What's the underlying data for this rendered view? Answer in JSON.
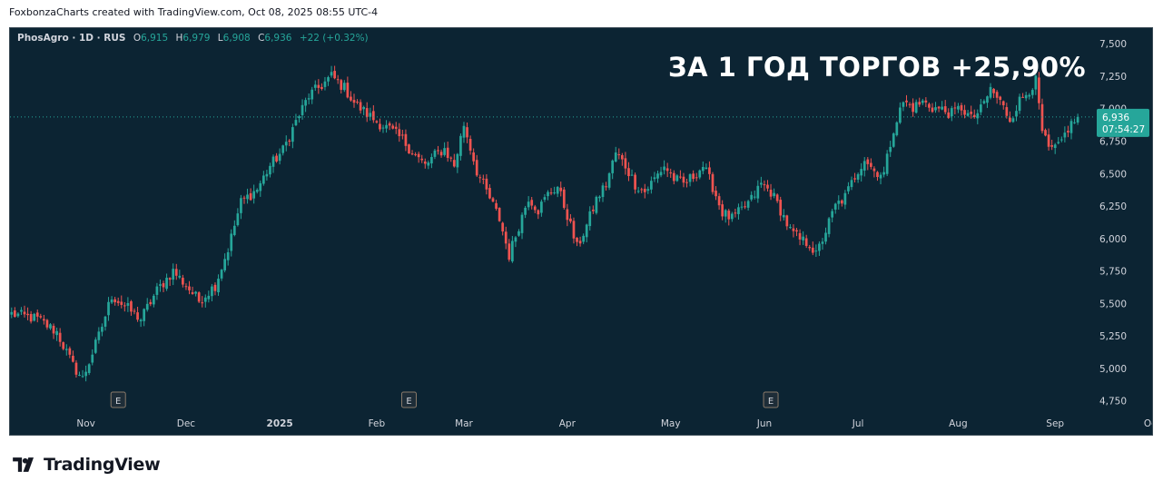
{
  "header": {
    "credit": "FoxbonzaCharts created with TradingView.com, Oct 08, 2025 08:55 UTC-4"
  },
  "legend": {
    "symbol": "PhosAgro · 1D · RUS",
    "o_label": "O",
    "o_value": "6,915",
    "h_label": "H",
    "h_value": "6,979",
    "l_label": "L",
    "l_value": "6,908",
    "c_label": "C",
    "c_value": "6,936",
    "change": "+22 (+0.32%)"
  },
  "annotation": "ЗА 1 ГОД ТОРГОВ +25,90%",
  "price_tag": {
    "price": "6,936",
    "countdown": "07:54:27"
  },
  "footer": {
    "brand": "TradingView"
  },
  "colors": {
    "background": "#0c2433",
    "up": "#26a69a",
    "down": "#ef5350",
    "axis_text": "#d1d4dc"
  },
  "chart_data": {
    "type": "candlestick",
    "symbol": "PhosAgro",
    "interval": "1D",
    "ylim": [
      4650,
      7620
    ],
    "y_ticks": [
      "7,500",
      "7,250",
      "7,000",
      "6,750",
      "6,500",
      "6,250",
      "6,000",
      "5,750",
      "5,500",
      "5,250",
      "5,000",
      "4,750"
    ],
    "y_tick_values": [
      7500,
      7250,
      7000,
      6750,
      6500,
      6250,
      6000,
      5750,
      5500,
      5250,
      5000,
      4750
    ],
    "x_ticks": [
      "Nov",
      "Dec",
      "2025",
      "Feb",
      "Mar",
      "Apr",
      "May",
      "Jun",
      "Jul",
      "Aug",
      "Sep",
      "Oct"
    ],
    "x_tick_index": [
      23,
      54,
      83,
      113,
      140,
      172,
      204,
      233,
      262,
      293,
      323,
      353
    ],
    "earnings_markers": {
      "label": "E",
      "index": [
        33,
        123,
        235
      ]
    },
    "last_price": 6936,
    "anchors": [
      [
        0,
        5420
      ],
      [
        8,
        5380
      ],
      [
        14,
        5280
      ],
      [
        19,
        5020
      ],
      [
        22,
        4920
      ],
      [
        27,
        5250
      ],
      [
        31,
        5560
      ],
      [
        36,
        5460
      ],
      [
        40,
        5380
      ],
      [
        45,
        5600
      ],
      [
        50,
        5750
      ],
      [
        54,
        5640
      ],
      [
        58,
        5520
      ],
      [
        63,
        5640
      ],
      [
        67,
        5920
      ],
      [
        71,
        6280
      ],
      [
        76,
        6380
      ],
      [
        80,
        6560
      ],
      [
        84,
        6680
      ],
      [
        88,
        6900
      ],
      [
        92,
        7100
      ],
      [
        96,
        7180
      ],
      [
        99,
        7250
      ],
      [
        103,
        7160
      ],
      [
        106,
        7050
      ],
      [
        109,
        6980
      ],
      [
        113,
        6900
      ],
      [
        117,
        6840
      ],
      [
        121,
        6760
      ],
      [
        125,
        6640
      ],
      [
        128,
        6560
      ],
      [
        131,
        6640
      ],
      [
        134,
        6690
      ],
      [
        137,
        6560
      ],
      [
        140,
        6880
      ],
      [
        144,
        6520
      ],
      [
        147,
        6360
      ],
      [
        151,
        6150
      ],
      [
        154,
        5870
      ],
      [
        157,
        6100
      ],
      [
        160,
        6320
      ],
      [
        163,
        6220
      ],
      [
        166,
        6340
      ],
      [
        169,
        6400
      ],
      [
        172,
        6180
      ],
      [
        175,
        5930
      ],
      [
        178,
        6100
      ],
      [
        181,
        6300
      ],
      [
        184,
        6420
      ],
      [
        187,
        6660
      ],
      [
        190,
        6560
      ],
      [
        193,
        6420
      ],
      [
        196,
        6360
      ],
      [
        199,
        6460
      ],
      [
        202,
        6560
      ],
      [
        205,
        6460
      ],
      [
        208,
        6420
      ],
      [
        211,
        6480
      ],
      [
        214,
        6560
      ],
      [
        217,
        6400
      ],
      [
        220,
        6200
      ],
      [
        223,
        6150
      ],
      [
        226,
        6220
      ],
      [
        229,
        6300
      ],
      [
        232,
        6420
      ],
      [
        235,
        6360
      ],
      [
        238,
        6220
      ],
      [
        241,
        6060
      ],
      [
        244,
        5990
      ],
      [
        247,
        5960
      ],
      [
        249,
        5870
      ],
      [
        252,
        6060
      ],
      [
        255,
        6250
      ],
      [
        258,
        6320
      ],
      [
        261,
        6480
      ],
      [
        264,
        6620
      ],
      [
        267,
        6520
      ],
      [
        270,
        6500
      ],
      [
        273,
        6850
      ],
      [
        276,
        7050
      ],
      [
        279,
        7010
      ],
      [
        282,
        7050
      ],
      [
        285,
        7010
      ],
      [
        288,
        6990
      ],
      [
        291,
        6960
      ],
      [
        294,
        7010
      ],
      [
        297,
        6920
      ],
      [
        300,
        6990
      ],
      [
        303,
        7150
      ],
      [
        306,
        7050
      ],
      [
        309,
        6920
      ],
      [
        312,
        7060
      ],
      [
        315,
        7150
      ],
      [
        317,
        7210
      ],
      [
        319,
        6820
      ],
      [
        321,
        6680
      ],
      [
        324,
        6700
      ],
      [
        327,
        6850
      ],
      [
        330,
        6936
      ]
    ],
    "candle_count": 331
  }
}
